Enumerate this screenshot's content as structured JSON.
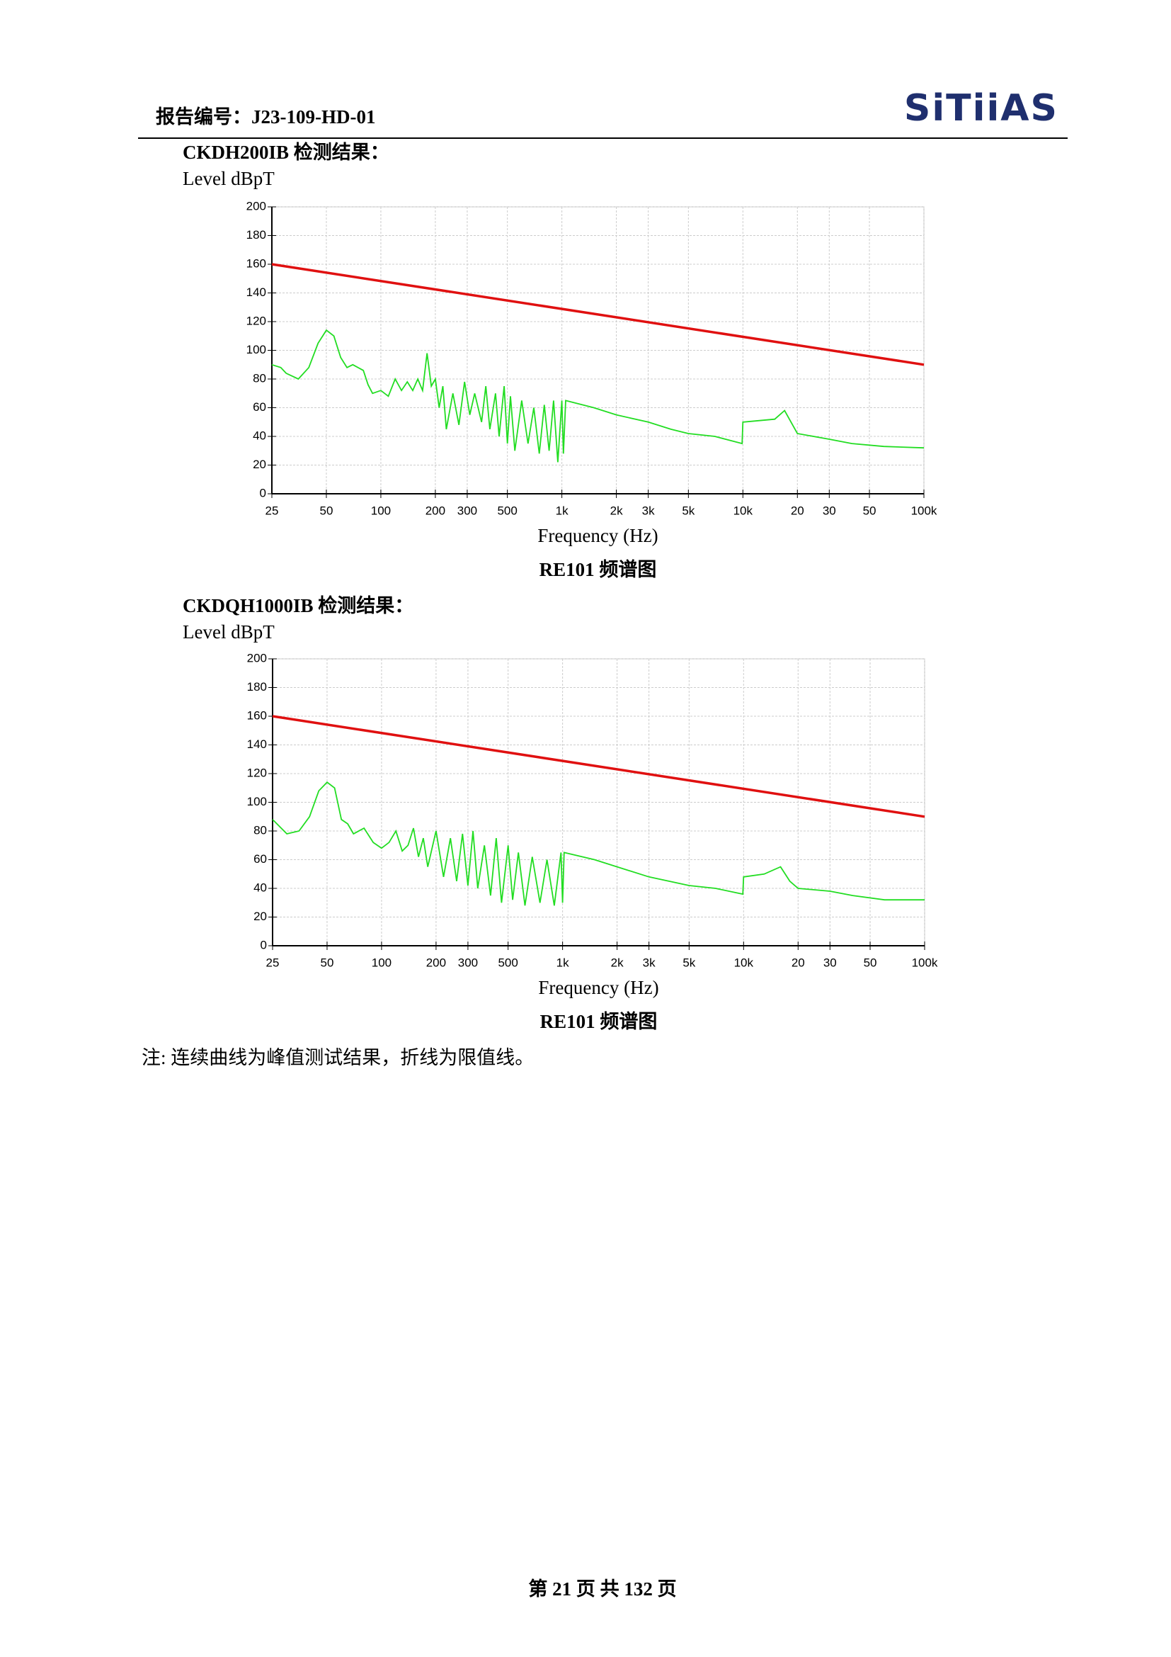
{
  "header": {
    "report_no": "报告编号：J23-109-HD-01",
    "logo": "SiTiiAS"
  },
  "chart_data": [
    {
      "type": "line",
      "title": "CKDH200IB 检测结果：",
      "y_label": "Level dBpT",
      "x_label": "Frequency (Hz)",
      "caption": "RE101 频谱图",
      "xscale": "log",
      "grid": true,
      "xlim": [
        25,
        100000
      ],
      "ylim": [
        0,
        200
      ],
      "yticks": [
        0,
        20,
        40,
        60,
        80,
        100,
        120,
        140,
        160,
        180,
        200
      ],
      "xticks": [
        25,
        50,
        100,
        200,
        300,
        500,
        {
          "value": 1000,
          "label": "1k"
        },
        {
          "value": 2000,
          "label": "2k"
        },
        {
          "value": 3000,
          "label": "3k"
        },
        {
          "value": 5000,
          "label": "5k"
        },
        {
          "value": 10000,
          "label": "10k"
        },
        {
          "value": 20000,
          "label": "20"
        },
        {
          "value": 30000,
          "label": "30"
        },
        {
          "value": 50000,
          "label": "50"
        },
        {
          "value": 100000,
          "label": "100k"
        }
      ],
      "series": [
        {
          "color": "#22dd22",
          "x": [
            25,
            28,
            30,
            35,
            40,
            45,
            50,
            55,
            60,
            65,
            70,
            80,
            85,
            90,
            100,
            110,
            120,
            130,
            140,
            150,
            160,
            170,
            180,
            190,
            200,
            210,
            220,
            230,
            250,
            270,
            290,
            310,
            330,
            360,
            380,
            400,
            430,
            450,
            480,
            500,
            520,
            550,
            600,
            650,
            700,
            750,
            800,
            850,
            900,
            950,
            1000,
            1020,
            1050,
            1500,
            2000,
            3000,
            4000,
            5000,
            7000,
            9900,
            10000,
            15000,
            17000,
            20000,
            30000,
            40000,
            60000,
            100000
          ],
          "values": [
            90,
            88,
            84,
            80,
            88,
            105,
            114,
            110,
            95,
            88,
            90,
            86,
            76,
            70,
            72,
            68,
            80,
            72,
            78,
            72,
            80,
            72,
            98,
            75,
            80,
            60,
            75,
            45,
            70,
            48,
            78,
            55,
            70,
            50,
            75,
            45,
            70,
            40,
            75,
            35,
            68,
            30,
            65,
            35,
            60,
            28,
            62,
            30,
            65,
            22,
            65,
            28,
            65,
            60,
            55,
            50,
            45,
            42,
            40,
            35,
            50,
            52,
            58,
            42,
            38,
            35,
            33,
            32
          ]
        },
        {
          "color": "#e01010",
          "x": [
            25,
            100000
          ],
          "values": [
            160,
            90
          ]
        }
      ]
    },
    {
      "type": "line",
      "title": "CKDQH1000IB 检测结果：",
      "y_label": "Level dBpT",
      "x_label": "Frequency (Hz)",
      "caption": "RE101 频谱图",
      "xscale": "log",
      "grid": true,
      "xlim": [
        25,
        100000
      ],
      "ylim": [
        0,
        200
      ],
      "yticks": [
        0,
        20,
        40,
        60,
        80,
        100,
        120,
        140,
        160,
        180,
        200
      ],
      "xticks": [
        25,
        50,
        100,
        200,
        300,
        500,
        {
          "value": 1000,
          "label": "1k"
        },
        {
          "value": 2000,
          "label": "2k"
        },
        {
          "value": 3000,
          "label": "3k"
        },
        {
          "value": 5000,
          "label": "5k"
        },
        {
          "value": 10000,
          "label": "10k"
        },
        {
          "value": 20000,
          "label": "20"
        },
        {
          "value": 30000,
          "label": "30"
        },
        {
          "value": 50000,
          "label": "50"
        },
        {
          "value": 100000,
          "label": "100k"
        }
      ],
      "series": [
        {
          "color": "#22dd22",
          "x": [
            25,
            30,
            35,
            40,
            45,
            50,
            55,
            60,
            65,
            70,
            80,
            90,
            100,
            110,
            120,
            130,
            140,
            150,
            160,
            170,
            180,
            200,
            220,
            240,
            260,
            280,
            300,
            320,
            340,
            370,
            400,
            430,
            460,
            500,
            530,
            570,
            620,
            680,
            750,
            820,
            900,
            980,
            1000,
            1020,
            1500,
            2000,
            3000,
            5000,
            7000,
            9900,
            10000,
            13000,
            16000,
            18000,
            20000,
            30000,
            40000,
            60000,
            100000
          ],
          "values": [
            88,
            78,
            80,
            90,
            108,
            114,
            110,
            88,
            85,
            78,
            82,
            72,
            68,
            72,
            80,
            66,
            70,
            82,
            62,
            75,
            55,
            80,
            48,
            75,
            45,
            78,
            42,
            80,
            40,
            70,
            35,
            75,
            30,
            70,
            32,
            65,
            28,
            62,
            30,
            60,
            28,
            65,
            30,
            65,
            60,
            55,
            48,
            42,
            40,
            36,
            48,
            50,
            55,
            45,
            40,
            38,
            35,
            32,
            32
          ]
        },
        {
          "color": "#e01010",
          "x": [
            25,
            100000
          ],
          "values": [
            160,
            90
          ]
        }
      ]
    }
  ],
  "note": "注: 连续曲线为峰值测试结果，折线为限值线。",
  "footer": "第 21 页 共 132 页"
}
